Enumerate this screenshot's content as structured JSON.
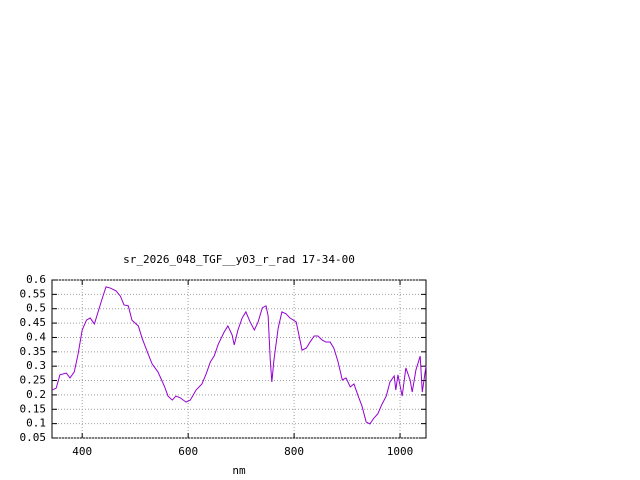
{
  "chart_data": {
    "type": "line",
    "title": "sr_2026_048_TGF__y03_r_rad 17-34-00",
    "x_label": "nm",
    "x": [
      343,
      351,
      358,
      370,
      377,
      385,
      392,
      400,
      408,
      415,
      423,
      430,
      438,
      445,
      453,
      464,
      472,
      479,
      487,
      494,
      506,
      513,
      525,
      532,
      543,
      555,
      562,
      570,
      577,
      585,
      596,
      604,
      615,
      626,
      634,
      642,
      649,
      657,
      668,
      675,
      683,
      687,
      694,
      702,
      709,
      717,
      725,
      732,
      740,
      747,
      751,
      755,
      758,
      762,
      770,
      777,
      785,
      792,
      804,
      815,
      823,
      830,
      838,
      845,
      853,
      860,
      868,
      875,
      883,
      891,
      898,
      906,
      913,
      921,
      928,
      936,
      943,
      951,
      958,
      966,
      974,
      981,
      989,
      992,
      996,
      1004,
      1011,
      1019,
      1023,
      1030,
      1038,
      1042,
      1049
    ],
    "series": [
      {
        "color": "#9400d3",
        "values": [
          0.217,
          0.224,
          0.27,
          0.276,
          0.259,
          0.28,
          0.34,
          0.426,
          0.46,
          0.468,
          0.447,
          0.489,
          0.537,
          0.576,
          0.572,
          0.562,
          0.544,
          0.513,
          0.51,
          0.46,
          0.44,
          0.398,
          0.34,
          0.308,
          0.28,
          0.231,
          0.196,
          0.182,
          0.196,
          0.19,
          0.175,
          0.182,
          0.217,
          0.238,
          0.273,
          0.315,
          0.335,
          0.377,
          0.419,
          0.44,
          0.409,
          0.374,
          0.426,
          0.468,
          0.489,
          0.454,
          0.426,
          0.454,
          0.503,
          0.51,
          0.475,
          0.322,
          0.245,
          0.322,
          0.433,
          0.489,
          0.482,
          0.468,
          0.454,
          0.356,
          0.363,
          0.384,
          0.405,
          0.405,
          0.391,
          0.384,
          0.384,
          0.363,
          0.315,
          0.252,
          0.259,
          0.228,
          0.238,
          0.196,
          0.162,
          0.106,
          0.099,
          0.12,
          0.134,
          0.168,
          0.196,
          0.245,
          0.266,
          0.217,
          0.27,
          0.196,
          0.294,
          0.252,
          0.21,
          0.287,
          0.335,
          0.21,
          0.301
        ]
      }
    ],
    "xlim": [
      343,
      1049
    ],
    "ylim": [
      0.05,
      0.6
    ],
    "xticks": [
      400,
      600,
      800,
      1000
    ],
    "yticks": [
      0.05,
      0.1,
      0.15,
      0.2,
      0.25,
      0.3,
      0.35,
      0.4,
      0.45,
      0.5,
      0.55,
      0.6
    ],
    "grid": true
  }
}
